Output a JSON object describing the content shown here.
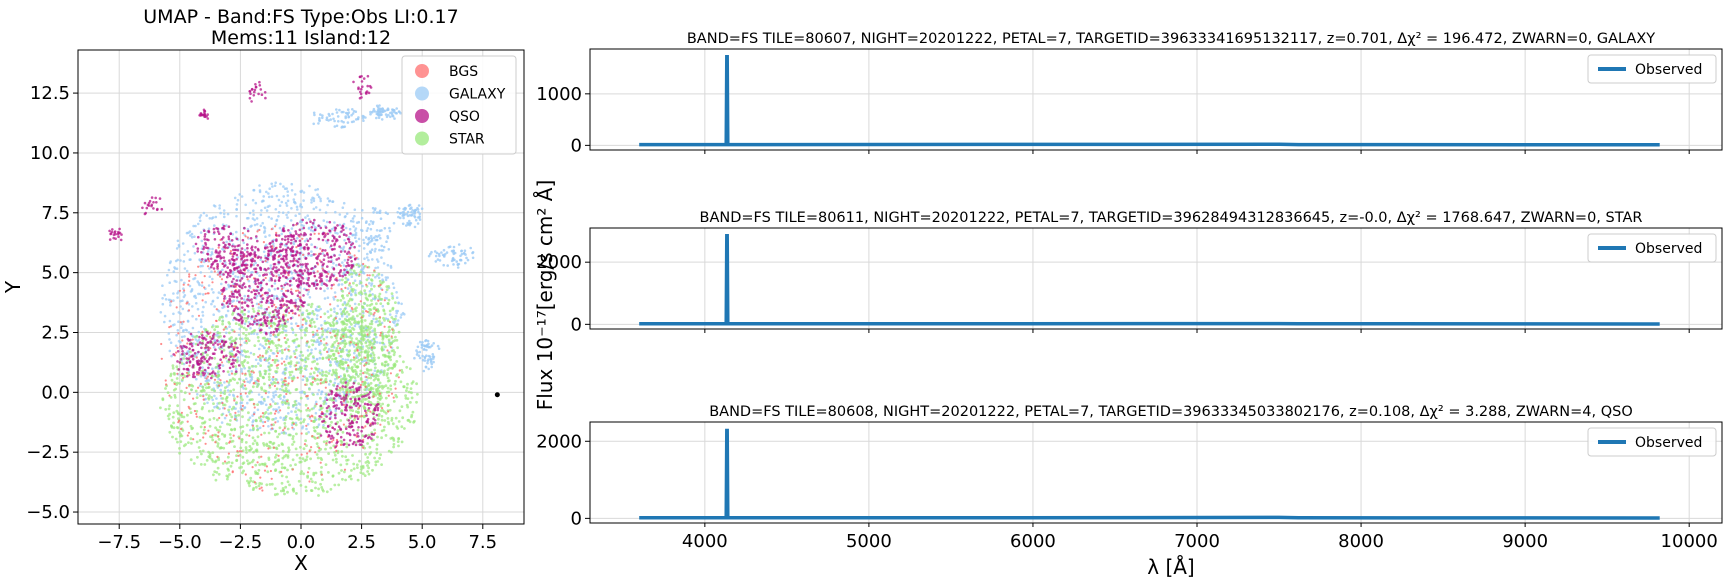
{
  "chart_data": [
    {
      "type": "scatter",
      "title": "UMAP  -  Band:FS Type:Obs LI:0.17",
      "subtitle": "Mems:11 Island:12",
      "xlabel": "X",
      "ylabel": "Y",
      "xlim": [
        -9.2,
        9.2
      ],
      "ylim": [
        -5.5,
        14.3
      ],
      "xticks": [
        -7.5,
        -5.0,
        -2.5,
        0.0,
        2.5,
        5.0,
        7.5
      ],
      "xtick_labels": [
        "−7.5",
        "−5.0",
        "−2.5",
        "0.0",
        "2.5",
        "5.0",
        "7.5"
      ],
      "yticks": [
        -5.0,
        -2.5,
        0.0,
        2.5,
        5.0,
        7.5,
        10.0,
        12.5
      ],
      "ytick_labels": [
        "−5.0",
        "−2.5",
        "0.0",
        "2.5",
        "5.0",
        "7.5",
        "10.0",
        "12.5"
      ],
      "grid": true,
      "legend_position": "top-right",
      "series": [
        {
          "name": "BGS",
          "color": "#ff6f6f"
        },
        {
          "name": "GALAXY",
          "color": "#9ccbf5"
        },
        {
          "name": "QSO",
          "color": "#b7148a"
        },
        {
          "name": "STAR",
          "color": "#9ae87c"
        }
      ],
      "regions": {
        "star_disk": {
          "center": [
            -0.5,
            -0.3
          ],
          "radii": [
            5.3,
            4.0
          ]
        },
        "star_arc": {
          "center": [
            2.6,
            2.2
          ],
          "radii": [
            1.4,
            3.2
          ]
        },
        "galaxy_cloud": {
          "center": [
            -0.8,
            3.5
          ],
          "radii": [
            5.0,
            5.2
          ]
        },
        "qso_clusters": [
          {
            "center": [
              -3.8,
              1.5
            ],
            "radii": [
              1.4,
              1.0
            ]
          },
          {
            "center": [
              -1.5,
              4.3
            ],
            "radii": [
              1.8,
              1.8
            ]
          },
          {
            "center": [
              0.5,
              5.8
            ],
            "radii": [
              1.8,
              1.5
            ]
          },
          {
            "center": [
              -3.0,
              6.0
            ],
            "radii": [
              1.3,
              1.0
            ]
          },
          {
            "center": [
              2.0,
              -1.0
            ],
            "radii": [
              1.2,
              1.4
            ]
          },
          {
            "center": [
              -6.2,
              7.8
            ],
            "radii": [
              0.4,
              0.3
            ]
          },
          {
            "center": [
              -7.7,
              6.6
            ],
            "radii": [
              0.3,
              0.2
            ]
          },
          {
            "center": [
              2.5,
              12.8
            ],
            "radii": [
              0.4,
              0.5
            ]
          },
          {
            "center": [
              -1.8,
              12.5
            ],
            "radii": [
              0.3,
              0.4
            ]
          },
          {
            "center": [
              -4.0,
              11.6
            ],
            "radii": [
              0.1,
              0.1
            ]
          }
        ],
        "galaxy_outliers": [
          {
            "center": [
              6.2,
              5.7
            ],
            "radii": [
              0.9,
              0.4
            ]
          },
          {
            "center": [
              3.0,
              6.8
            ],
            "radii": [
              1.0,
              1.0
            ]
          },
          {
            "center": [
              4.5,
              7.4
            ],
            "radii": [
              0.5,
              0.4
            ]
          },
          {
            "center": [
              5.2,
              1.6
            ],
            "radii": [
              0.5,
              0.6
            ]
          },
          {
            "center": [
              1.5,
              11.5
            ],
            "radii": [
              1.2,
              0.4
            ]
          },
          {
            "center": [
              3.5,
              11.7
            ],
            "radii": [
              0.6,
              0.2
            ]
          }
        ],
        "isolated_point": [
          8.1,
          -0.1
        ]
      }
    },
    {
      "type": "line",
      "title": "BAND=FS TILE=80607, NIGHT=20201222, PETAL=7, TARGETID=39633341695132117, z=0.701, Δχ² = 196.472, ZWARN=0, GALAXY",
      "xlim": [
        3300,
        10200
      ],
      "ylim": [
        -90,
        1870
      ],
      "yticks": [
        0,
        1000
      ],
      "ytick_labels": [
        "0",
        "1000"
      ],
      "grid": true,
      "legend_position": "top-right",
      "series": [
        {
          "name": "Observed",
          "color": "#1f77b4"
        }
      ],
      "x": [
        3600,
        4130,
        4134,
        4136,
        4140,
        5770,
        7500,
        7620,
        9820
      ],
      "y": [
        15,
        15,
        1720,
        1720,
        15,
        18,
        20,
        15,
        10
      ]
    },
    {
      "type": "line",
      "title": "BAND=FS TILE=80611, NIGHT=20201222, PETAL=7, TARGETID=39628494312836645, z=-0.0, Δχ² = 1768.647, ZWARN=0, STAR",
      "xlim": [
        3300,
        10200
      ],
      "ylim": [
        -150,
        3100
      ],
      "yticks": [
        0,
        2000
      ],
      "ytick_labels": [
        "0",
        "2000"
      ],
      "grid": true,
      "legend_position": "top-right",
      "series": [
        {
          "name": "Observed",
          "color": "#1f77b4"
        }
      ],
      "x": [
        3600,
        4130,
        4134,
        4136,
        4140,
        5770,
        7500,
        7620,
        9820
      ],
      "y": [
        20,
        20,
        2850,
        2850,
        20,
        20,
        25,
        20,
        10
      ]
    },
    {
      "type": "line",
      "title": "BAND=FS TILE=80608, NIGHT=20201222, PETAL=7, TARGETID=39633345033802176, z=0.108, Δχ² = 3.288, ZWARN=4, QSO",
      "xlabel": "λ [Å]",
      "xlim": [
        3300,
        10200
      ],
      "xticks": [
        4000,
        5000,
        6000,
        7000,
        8000,
        9000,
        10000
      ],
      "xtick_labels": [
        "4000",
        "5000",
        "6000",
        "7000",
        "8000",
        "9000",
        "10000"
      ],
      "ylim": [
        -120,
        2500
      ],
      "yticks": [
        0,
        2000
      ],
      "ytick_labels": [
        "0",
        "2000"
      ],
      "grid": true,
      "legend_position": "top-right",
      "series": [
        {
          "name": "Observed",
          "color": "#1f77b4"
        }
      ],
      "x": [
        3600,
        4130,
        4134,
        4136,
        4140,
        5770,
        7500,
        7620,
        9820
      ],
      "y": [
        15,
        15,
        2280,
        2280,
        15,
        15,
        25,
        15,
        10
      ]
    }
  ],
  "shared_ylabel": "Flux 10⁻¹⁷[erg/s cm² Å]"
}
